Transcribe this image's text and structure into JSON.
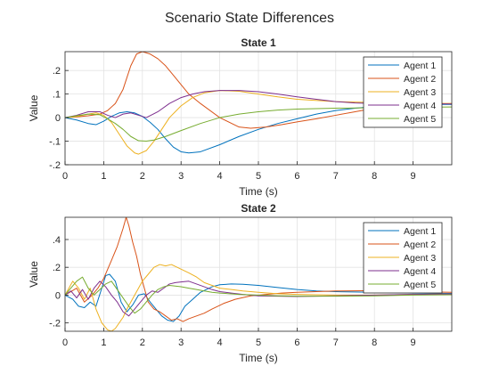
{
  "figure": {
    "title": "Scenario State Differences"
  },
  "colors": [
    "#0072BD",
    "#D95319",
    "#EDB120",
    "#7E2F8E",
    "#77AC30"
  ],
  "chart_data": [
    {
      "type": "line",
      "title": "State 1",
      "xlabel": "Time (s)",
      "ylabel": "Value",
      "xlim": [
        0,
        10
      ],
      "ylim": [
        -0.2,
        0.28
      ],
      "xticks": [
        0,
        1,
        2,
        3,
        4,
        5,
        6,
        7,
        8,
        9
      ],
      "yticks": [
        -0.2,
        -0.1,
        0,
        0.1,
        0.2
      ],
      "grid": true,
      "legend_position": "top-right",
      "series": [
        {
          "name": "Agent 1",
          "x": [
            0,
            0.3,
            0.6,
            0.8,
            1.0,
            1.2,
            1.4,
            1.6,
            1.8,
            2.0,
            2.2,
            2.4,
            2.6,
            2.8,
            3.0,
            3.2,
            3.5,
            4.0,
            4.5,
            5.0,
            5.5,
            6.0,
            6.5,
            7.0,
            7.5,
            8.0,
            8.5,
            9.0,
            9.5,
            10.0
          ],
          "y": [
            0,
            -0.01,
            -0.025,
            -0.03,
            -0.015,
            0.005,
            0.02,
            0.025,
            0.02,
            0.005,
            -0.02,
            -0.05,
            -0.09,
            -0.125,
            -0.145,
            -0.15,
            -0.145,
            -0.115,
            -0.08,
            -0.05,
            -0.025,
            -0.005,
            0.015,
            0.03,
            0.04,
            0.047,
            0.052,
            0.055,
            0.056,
            0.056
          ]
        },
        {
          "name": "Agent 2",
          "x": [
            0,
            0.3,
            0.6,
            0.9,
            1.1,
            1.3,
            1.5,
            1.7,
            1.85,
            2.0,
            2.2,
            2.4,
            2.6,
            2.8,
            3.0,
            3.2,
            3.5,
            4.0,
            4.5,
            4.8,
            5.2,
            5.6,
            6.0,
            6.5,
            7.0,
            7.5,
            8.0,
            8.5,
            9.0,
            10.0
          ],
          "y": [
            0,
            0.003,
            0.008,
            0.015,
            0.03,
            0.06,
            0.12,
            0.22,
            0.27,
            0.28,
            0.27,
            0.25,
            0.22,
            0.18,
            0.14,
            0.1,
            0.06,
            0.0,
            -0.04,
            -0.045,
            -0.04,
            -0.03,
            -0.018,
            -0.005,
            0.01,
            0.025,
            0.04,
            0.05,
            0.055,
            0.06
          ]
        },
        {
          "name": "Agent 3",
          "x": [
            0,
            0.3,
            0.6,
            0.8,
            1.0,
            1.2,
            1.4,
            1.6,
            1.8,
            1.9,
            2.1,
            2.3,
            2.5,
            2.7,
            3.0,
            3.3,
            3.6,
            4.0,
            4.5,
            5.0,
            5.5,
            6.0,
            7.0,
            8.0,
            9.0,
            10.0
          ],
          "y": [
            0,
            0.005,
            0.015,
            0.02,
            0.01,
            -0.02,
            -0.07,
            -0.12,
            -0.15,
            -0.155,
            -0.14,
            -0.1,
            -0.05,
            0.0,
            0.05,
            0.085,
            0.105,
            0.115,
            0.112,
            0.1,
            0.088,
            0.078,
            0.068,
            0.064,
            0.062,
            0.06
          ]
        },
        {
          "name": "Agent 4",
          "x": [
            0,
            0.3,
            0.6,
            0.9,
            1.1,
            1.3,
            1.5,
            1.7,
            1.9,
            2.1,
            2.4,
            2.7,
            3.0,
            3.3,
            3.6,
            4.0,
            4.5,
            5.0,
            5.5,
            6.0,
            6.5,
            7.0,
            7.5,
            8.0,
            8.5,
            9.0,
            10.0
          ],
          "y": [
            0,
            0.01,
            0.025,
            0.025,
            0.01,
            0.0,
            0.015,
            0.02,
            0.01,
            0.0,
            0.025,
            0.06,
            0.085,
            0.1,
            0.11,
            0.115,
            0.115,
            0.11,
            0.1,
            0.088,
            0.078,
            0.068,
            0.062,
            0.06,
            0.06,
            0.06,
            0.058
          ]
        },
        {
          "name": "Agent 5",
          "x": [
            0,
            0.3,
            0.6,
            0.9,
            1.1,
            1.3,
            1.5,
            1.7,
            1.9,
            2.1,
            2.3,
            2.6,
            3.0,
            3.5,
            4.0,
            4.5,
            5.0,
            5.5,
            6.0,
            7.0,
            8.0,
            9.0,
            10.0
          ],
          "y": [
            0,
            0.008,
            0.015,
            0.012,
            -0.005,
            -0.025,
            -0.05,
            -0.08,
            -0.098,
            -0.1,
            -0.095,
            -0.08,
            -0.055,
            -0.025,
            0.0,
            0.015,
            0.025,
            0.032,
            0.036,
            0.04,
            0.042,
            0.044,
            0.045
          ]
        }
      ]
    },
    {
      "type": "line",
      "title": "State 2",
      "xlabel": "Time (s)",
      "ylabel": "Value",
      "xlim": [
        0,
        10
      ],
      "ylim": [
        -0.26,
        0.56
      ],
      "xticks": [
        0,
        1,
        2,
        3,
        4,
        5,
        6,
        7,
        8,
        9
      ],
      "yticks": [
        -0.2,
        0,
        0.2,
        0.4
      ],
      "grid": true,
      "legend_position": "top-right",
      "series": [
        {
          "name": "Agent 1",
          "x": [
            0,
            0.2,
            0.35,
            0.5,
            0.65,
            0.8,
            0.95,
            1.05,
            1.15,
            1.3,
            1.45,
            1.6,
            1.75,
            1.9,
            2.05,
            2.2,
            2.35,
            2.5,
            2.65,
            2.8,
            2.95,
            3.1,
            3.3,
            3.5,
            3.8,
            4.0,
            4.3,
            4.6,
            5.0,
            5.5,
            6.0,
            6.5,
            7.0,
            8.0,
            9.0,
            10.0
          ],
          "y": [
            0,
            -0.03,
            -0.08,
            -0.09,
            -0.05,
            -0.08,
            0.05,
            0.14,
            0.15,
            0.1,
            -0.05,
            -0.12,
            -0.07,
            0.0,
            0.01,
            -0.05,
            -0.1,
            -0.15,
            -0.18,
            -0.19,
            -0.15,
            -0.08,
            -0.03,
            0.02,
            0.06,
            0.075,
            0.08,
            0.078,
            0.07,
            0.055,
            0.04,
            0.03,
            0.025,
            0.02,
            0.015,
            0.012
          ]
        },
        {
          "name": "Agent 2",
          "x": [
            0,
            0.3,
            0.5,
            0.7,
            0.85,
            1.0,
            1.2,
            1.35,
            1.5,
            1.58,
            1.65,
            1.75,
            1.85,
            1.95,
            2.05,
            2.15,
            2.3,
            2.45,
            2.6,
            2.75,
            2.9,
            3.05,
            3.2,
            3.4,
            3.6,
            3.8,
            4.1,
            4.4,
            4.8,
            5.2,
            5.6,
            6.0,
            6.5,
            7.0,
            8.0,
            9.0,
            10.0
          ],
          "y": [
            0,
            0.05,
            -0.05,
            0.0,
            0.05,
            0.12,
            0.25,
            0.35,
            0.48,
            0.56,
            0.5,
            0.38,
            0.28,
            0.15,
            0.05,
            -0.05,
            -0.1,
            -0.12,
            -0.15,
            -0.18,
            -0.17,
            -0.19,
            -0.17,
            -0.15,
            -0.13,
            -0.1,
            -0.06,
            -0.03,
            -0.005,
            0.005,
            0.015,
            0.02,
            0.025,
            0.03,
            0.032,
            0.025,
            0.02
          ]
        },
        {
          "name": "Agent 3",
          "x": [
            0,
            0.2,
            0.35,
            0.5,
            0.65,
            0.8,
            0.95,
            1.1,
            1.2,
            1.3,
            1.4,
            1.5,
            1.6,
            1.7,
            1.8,
            1.9,
            2.0,
            2.15,
            2.3,
            2.45,
            2.6,
            2.75,
            2.9,
            3.05,
            3.2,
            3.4,
            3.6,
            3.8,
            4.0,
            4.3,
            4.6,
            5.0,
            5.5,
            6.0,
            7.0,
            8.0,
            9.0,
            10.0
          ],
          "y": [
            0,
            0.1,
            0.05,
            -0.03,
            0.05,
            -0.1,
            -0.2,
            -0.25,
            -0.26,
            -0.24,
            -0.2,
            -0.16,
            -0.1,
            -0.05,
            0.0,
            0.05,
            0.1,
            0.15,
            0.2,
            0.22,
            0.21,
            0.22,
            0.2,
            0.18,
            0.16,
            0.13,
            0.09,
            0.07,
            0.05,
            0.04,
            0.03,
            0.02,
            0.01,
            0.005,
            0.0,
            0.0,
            0.005,
            0.008
          ]
        },
        {
          "name": "Agent 4",
          "x": [
            0,
            0.15,
            0.3,
            0.45,
            0.6,
            0.75,
            0.9,
            1.05,
            1.2,
            1.35,
            1.5,
            1.65,
            1.8,
            1.95,
            2.1,
            2.25,
            2.4,
            2.55,
            2.7,
            2.85,
            3.0,
            3.2,
            3.4,
            3.6,
            3.8,
            4.0,
            4.3,
            4.6,
            5.0,
            5.5,
            6.0,
            7.0,
            8.0,
            9.0,
            10.0
          ],
          "y": [
            0,
            0.03,
            -0.02,
            0.04,
            -0.03,
            0.05,
            0.1,
            0.06,
            0.0,
            -0.05,
            -0.12,
            -0.15,
            -0.1,
            -0.05,
            0.0,
            0.03,
            0.02,
            0.05,
            0.08,
            0.09,
            0.095,
            0.1,
            0.08,
            0.06,
            0.04,
            0.025,
            0.015,
            0.005,
            -0.005,
            -0.008,
            -0.01,
            -0.005,
            0.0,
            0.005,
            0.008
          ]
        },
        {
          "name": "Agent 5",
          "x": [
            0,
            0.15,
            0.3,
            0.45,
            0.6,
            0.75,
            0.9,
            1.05,
            1.2,
            1.35,
            1.5,
            1.65,
            1.8,
            1.95,
            2.1,
            2.25,
            2.4,
            2.55,
            2.7,
            2.85,
            3.0,
            3.2,
            3.4,
            3.6,
            3.8,
            4.0,
            4.5,
            5.0,
            5.5,
            6.0,
            7.0,
            8.0,
            9.0,
            10.0
          ],
          "y": [
            0,
            0.05,
            0.1,
            0.13,
            0.05,
            0.0,
            0.04,
            0.08,
            0.1,
            0.04,
            -0.02,
            -0.08,
            -0.13,
            -0.1,
            -0.05,
            0.0,
            0.04,
            0.06,
            0.07,
            0.065,
            0.06,
            0.05,
            0.04,
            0.03,
            0.02,
            0.015,
            0.005,
            0.0,
            -0.005,
            -0.008,
            -0.008,
            -0.005,
            0.0,
            0.003
          ]
        }
      ]
    }
  ]
}
